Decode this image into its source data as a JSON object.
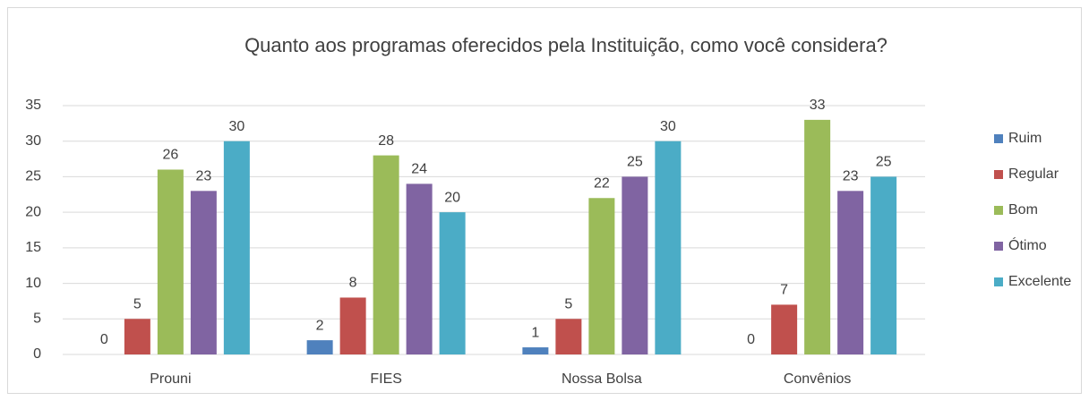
{
  "chart_data": {
    "type": "bar",
    "title": "Quanto aos programas oferecidos pela Instituição, como você considera?",
    "categories": [
      "Prouni",
      "FIES",
      "Nossa Bolsa",
      "Convênios"
    ],
    "series": [
      {
        "name": "Ruim",
        "color": "#4f81bd",
        "values": [
          0,
          2,
          1,
          0
        ]
      },
      {
        "name": "Regular",
        "color": "#c0504d",
        "values": [
          5,
          8,
          5,
          7
        ]
      },
      {
        "name": "Bom",
        "color": "#9bbb59",
        "values": [
          26,
          28,
          22,
          33
        ]
      },
      {
        "name": "Ótimo",
        "color": "#8064a2",
        "values": [
          23,
          24,
          25,
          23
        ]
      },
      {
        "name": "Excelente",
        "color": "#4bacc6",
        "values": [
          30,
          20,
          30,
          25
        ]
      }
    ],
    "ylim": [
      0,
      35
    ],
    "yticks": [
      0,
      5,
      10,
      15,
      20,
      25,
      30,
      35
    ],
    "grid": true,
    "legend": "right"
  }
}
